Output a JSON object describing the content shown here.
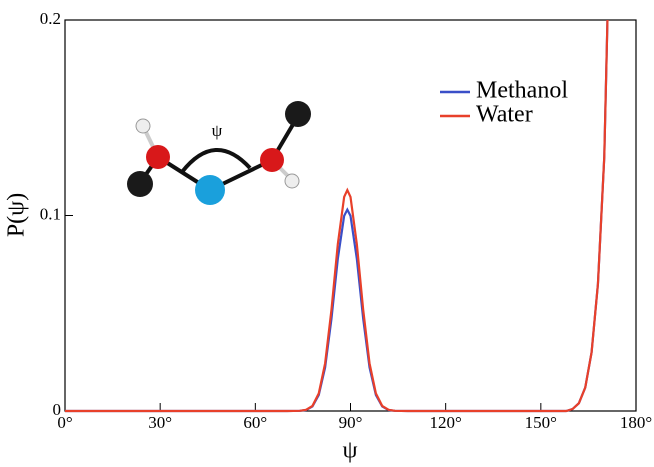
{
  "chart_data": {
    "type": "line",
    "x_label": "ψ",
    "y_label": "P(ψ)",
    "inset_label": "ψ",
    "x": [
      0,
      70,
      74,
      76,
      78,
      80,
      82,
      84,
      86,
      88,
      89,
      90,
      92,
      94,
      96,
      98,
      100,
      102,
      104,
      108,
      150,
      158,
      160,
      162,
      164,
      166,
      168,
      170,
      171
    ],
    "series": [
      {
        "name": "Methanol",
        "color": "#3a4fc8",
        "values": [
          0,
          0,
          0.0001,
          0.0005,
          0.0023,
          0.0082,
          0.0223,
          0.0472,
          0.0778,
          0.0998,
          0.103,
          0.0998,
          0.0778,
          0.0472,
          0.0223,
          0.0082,
          0.0023,
          0.0005,
          0.0001,
          0,
          0,
          0,
          0.001,
          0.004,
          0.012,
          0.03,
          0.065,
          0.13,
          0.2
        ]
      },
      {
        "name": "Water",
        "color": "#e8402a",
        "values": [
          0,
          0,
          0.0001,
          0.0006,
          0.0026,
          0.009,
          0.0244,
          0.0518,
          0.0853,
          0.1095,
          0.113,
          0.1095,
          0.0853,
          0.0518,
          0.0244,
          0.009,
          0.0026,
          0.0006,
          0.0001,
          0,
          0,
          0,
          0.001,
          0.004,
          0.012,
          0.03,
          0.065,
          0.13,
          0.2
        ]
      }
    ],
    "xlim": [
      0,
      180
    ],
    "ylim": [
      0,
      0.2
    ],
    "xticks": [
      {
        "value": 0,
        "label": "0°"
      },
      {
        "value": 30,
        "label": "30°"
      },
      {
        "value": 60,
        "label": "60°"
      },
      {
        "value": 90,
        "label": "90°"
      },
      {
        "value": 120,
        "label": "120°"
      },
      {
        "value": 150,
        "label": "150°"
      },
      {
        "value": 180,
        "label": "180°"
      }
    ],
    "yticks": [
      0,
      0.1,
      0.2
    ],
    "legend": "upper-right"
  }
}
